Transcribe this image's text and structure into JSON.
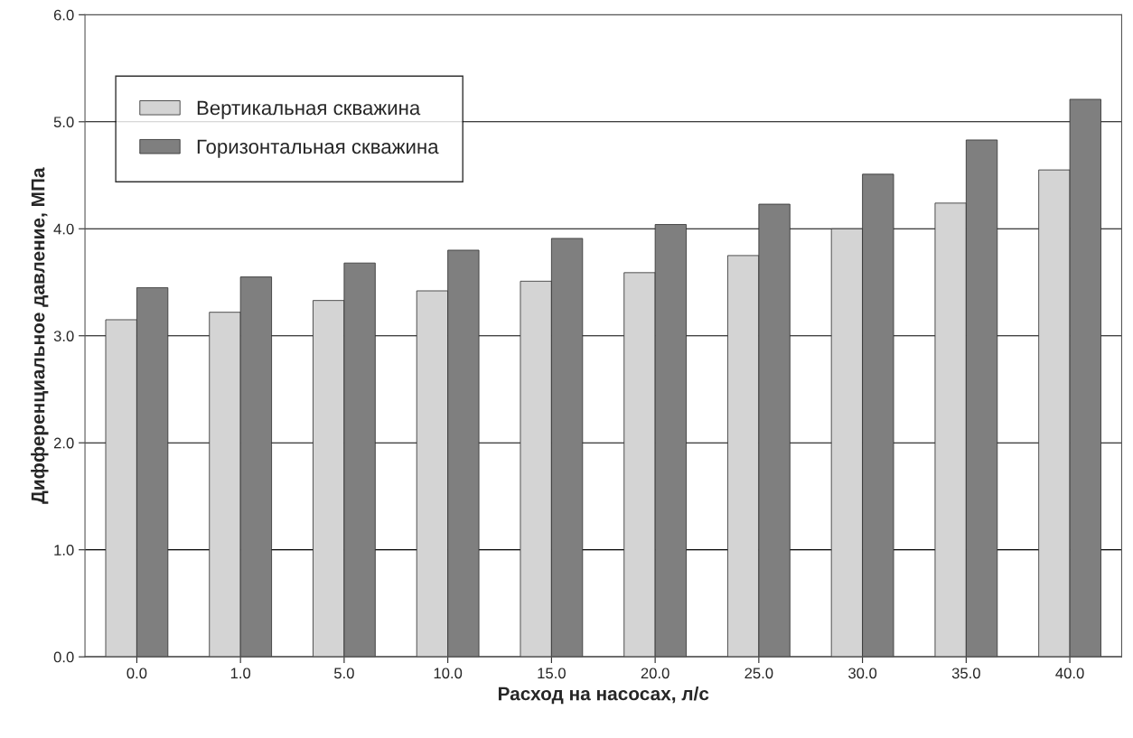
{
  "chart_data": {
    "type": "bar",
    "xlabel": "Расход на насосах, л/с",
    "ylabel": "Дифференциальное давление, МПа",
    "categories": [
      "0.0",
      "1.0",
      "5.0",
      "10.0",
      "15.0",
      "20.0",
      "25.0",
      "30.0",
      "35.0",
      "40.0"
    ],
    "series": [
      {
        "name": "Вертикальная скважина",
        "color": "#d4d4d4",
        "values": [
          3.15,
          3.22,
          3.33,
          3.42,
          3.51,
          3.59,
          3.75,
          4.0,
          4.24,
          4.55
        ]
      },
      {
        "name": "Горизонтальная скважина",
        "color": "#7f7f7f",
        "values": [
          3.45,
          3.55,
          3.68,
          3.8,
          3.91,
          4.04,
          4.23,
          4.51,
          4.83,
          5.21
        ]
      }
    ],
    "ylim": [
      0,
      6
    ],
    "yticks": [
      {
        "value": 0,
        "label": "0.0"
      },
      {
        "value": 1,
        "label": "1.0"
      },
      {
        "value": 2,
        "label": "2.0"
      },
      {
        "value": 3,
        "label": "3.0"
      },
      {
        "value": 4,
        "label": "4.0"
      },
      {
        "value": 5,
        "label": "5.0"
      },
      {
        "value": 6,
        "label": "6.0"
      }
    ],
    "grid": "y",
    "legend": "top left"
  }
}
